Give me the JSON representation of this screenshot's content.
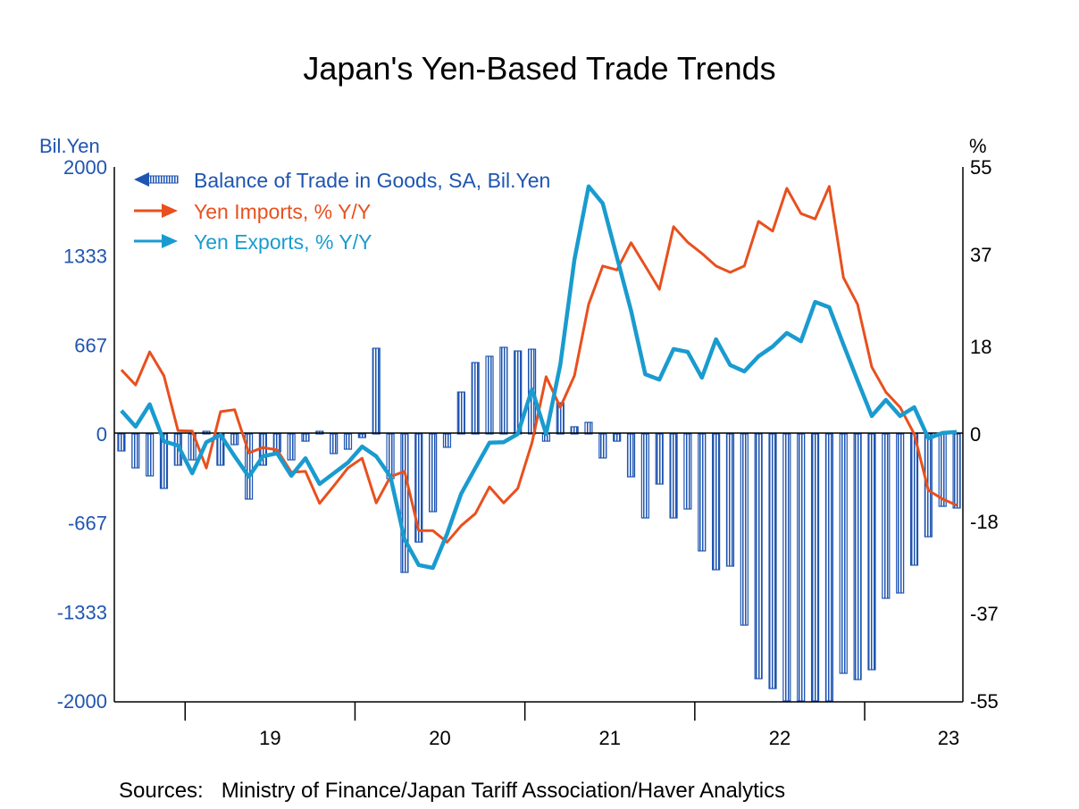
{
  "title": "Japan's Yen-Based Trade Trends",
  "sources": "Sources:   Ministry of Finance/Japan Tariff Association/Haver Analytics",
  "chart_data": {
    "type": "bar+line",
    "title": "Japan's Yen-Based Trade Trends",
    "left_axis": {
      "label": "Bil.Yen",
      "range": [
        -2000,
        2000
      ],
      "ticks": [
        "2000",
        "1333",
        "667",
        "0",
        "-667",
        "-1333",
        "-2000"
      ],
      "tick_values": [
        2000,
        1333,
        667,
        0,
        -667,
        -1333,
        -2000
      ],
      "color": "#1f55b0"
    },
    "right_axis": {
      "label": "%",
      "range": [
        -55,
        55
      ],
      "ticks": [
        "55",
        "37",
        "18",
        "0",
        "-18",
        "-37",
        "-55"
      ],
      "tick_values": [
        55,
        37,
        18,
        0,
        -18,
        -37,
        -55
      ]
    },
    "x_axis": {
      "ticks": [
        "19",
        "20",
        "21",
        "22",
        "23"
      ],
      "years": [
        2019,
        2020,
        2021,
        2022,
        2023
      ]
    },
    "categories": [
      "2018-08",
      "2018-09",
      "2018-10",
      "2018-11",
      "2018-12",
      "2019-01",
      "2019-02",
      "2019-03",
      "2019-04",
      "2019-05",
      "2019-06",
      "2019-07",
      "2019-08",
      "2019-09",
      "2019-10",
      "2019-11",
      "2019-12",
      "2020-01",
      "2020-02",
      "2020-03",
      "2020-04",
      "2020-05",
      "2020-06",
      "2020-07",
      "2020-08",
      "2020-09",
      "2020-10",
      "2020-11",
      "2020-12",
      "2021-01",
      "2021-02",
      "2021-03",
      "2021-04",
      "2021-05",
      "2021-06",
      "2021-07",
      "2021-08",
      "2021-09",
      "2021-10",
      "2021-11",
      "2021-12",
      "2022-01",
      "2022-02",
      "2022-03",
      "2022-04",
      "2022-05",
      "2022-06",
      "2022-07",
      "2022-08",
      "2022-09",
      "2022-10",
      "2022-11",
      "2022-12",
      "2023-01",
      "2023-02",
      "2023-03",
      "2023-04",
      "2023-05",
      "2023-06",
      "2023-07"
    ],
    "legend_placement": "top-left",
    "grid": false,
    "series": [
      {
        "name": "Balance of Trade in Goods, SA, Bil.Yen",
        "type": "bar",
        "axis": "left",
        "color": "#1f55b0",
        "values": [
          -127,
          -254,
          -314,
          -408,
          -234,
          -194,
          20,
          -234,
          -80,
          -488,
          -234,
          -134,
          -194,
          -54,
          20,
          -147,
          -114,
          -27,
          642,
          -334,
          -1037,
          -810,
          -582,
          -100,
          314,
          535,
          582,
          649,
          622,
          635,
          -54,
          234,
          54,
          87,
          -180,
          -54,
          -321,
          -629,
          -375,
          -629,
          -562,
          -876,
          -1017,
          -990,
          -1432,
          -1833,
          -1907,
          -2000,
          -2000,
          -2000,
          -2000,
          -1793,
          -1840,
          -1766,
          -1231,
          -1191,
          -983,
          -770,
          -542,
          -555
        ]
      },
      {
        "name": "Yen Imports, % Y/Y",
        "type": "line",
        "axis": "right",
        "color": "#e8501e",
        "values": [
          13.2,
          10.1,
          16.9,
          12.0,
          0.7,
          0.6,
          -7.0,
          4.6,
          5.0,
          -3.9,
          -2.8,
          -3.3,
          -7.9,
          -7.7,
          -14.3,
          -10.7,
          -7.0,
          -5.0,
          -14.2,
          -8.8,
          -7.7,
          -19.9,
          -19.9,
          -22.3,
          -18.9,
          -16.4,
          -10.9,
          -14.2,
          -11.2,
          -1.8,
          11.8,
          5.5,
          12.0,
          26.7,
          34.6,
          33.8,
          39.4,
          34.6,
          29.8,
          42.7,
          39.5,
          37.2,
          34.6,
          33.3,
          34.6,
          43.8,
          41.8,
          50.6,
          45.4,
          44.3,
          51.0,
          32.2,
          26.7,
          13.8,
          8.6,
          5.5,
          0.0,
          -11.6,
          -13.4,
          -14.7
        ]
      },
      {
        "name": "Yen Exports, % Y/Y",
        "type": "line",
        "axis": "right",
        "color": "#1a9bcf",
        "values": [
          4.8,
          1.5,
          6.1,
          -1.5,
          -2.4,
          -8.1,
          -1.7,
          -0.2,
          -4.6,
          -8.8,
          -4.6,
          -4.0,
          -8.6,
          -5.0,
          -10.3,
          -8.1,
          -5.9,
          -2.6,
          -4.6,
          -8.8,
          -21.7,
          -27.0,
          -27.6,
          -20.6,
          -12.3,
          -7.0,
          -1.8,
          -1.7,
          0.0,
          9.2,
          0.0,
          14.3,
          35.9,
          51.0,
          47.5,
          36.4,
          25.4,
          12.3,
          11.2,
          17.5,
          16.9,
          11.6,
          19.5,
          14.2,
          12.9,
          16.0,
          18.0,
          20.8,
          19.1,
          27.2,
          26.1,
          18.4,
          11.0,
          3.7,
          7.0,
          3.7,
          5.5,
          -0.9,
          0.2,
          0.4
        ]
      }
    ]
  }
}
